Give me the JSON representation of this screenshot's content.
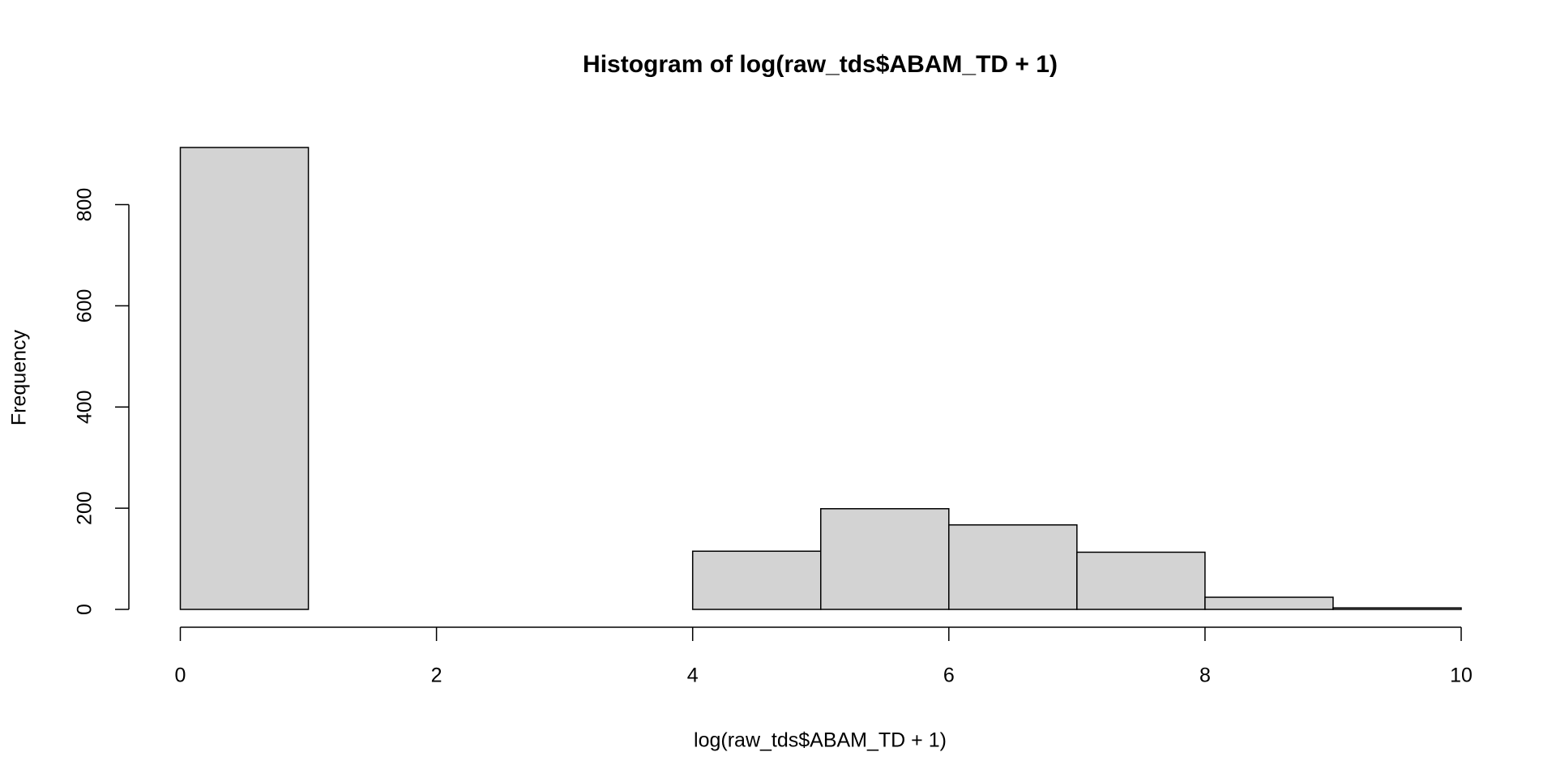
{
  "chart_data": {
    "type": "histogram",
    "title": "Histogram of log(raw_tds$ABAM_TD + 1)",
    "x_label": "log(raw_tds$ABAM_TD + 1)",
    "y_label": "Frequency",
    "bins": [
      0,
      1,
      2,
      3,
      4,
      5,
      6,
      7,
      8,
      9,
      10
    ],
    "values": [
      913,
      0,
      0,
      0,
      115,
      199,
      167,
      113,
      24,
      3
    ],
    "color": "#d3d3d3",
    "xlim": [
      0,
      10
    ],
    "xticks": [
      0,
      2,
      4,
      6,
      8,
      10
    ],
    "ylim": [
      0,
      913
    ],
    "yticks": [
      0,
      200,
      400,
      600,
      800
    ]
  }
}
